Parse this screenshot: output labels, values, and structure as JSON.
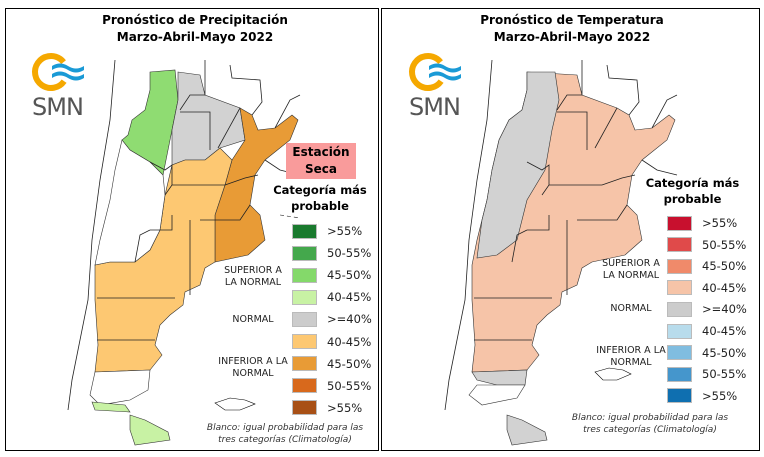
{
  "precipitation": {
    "title_line1": "Pronóstico de Precipitación",
    "title_line2": "Marzo-Abril-Mayo 2022",
    "logo_text": "SMN",
    "season_badge": "Estación Seca",
    "legend_title": "Categoría más probable",
    "groups": {
      "above": "SUPERIOR A LA NORMAL",
      "normal": "NORMAL",
      "below": "INFERIOR A LA NORMAL"
    },
    "legend": [
      {
        "label": ">55%",
        "color": "#1a7a2e"
      },
      {
        "label": "50-55%",
        "color": "#44a84c"
      },
      {
        "label": "45-50%",
        "color": "#84d96a"
      },
      {
        "label": "40-45%",
        "color": "#c8f2a4"
      },
      {
        "label": ">=40%",
        "color": "#cccccc"
      },
      {
        "label": "40-45%",
        "color": "#fdc872"
      },
      {
        "label": "45-50%",
        "color": "#e89b36"
      },
      {
        "label": "50-55%",
        "color": "#d8691c"
      },
      {
        "label": ">55%",
        "color": "#a85016"
      }
    ],
    "note": "Blanco: igual probabilidad para las tres categorías (Climatología)"
  },
  "temperature": {
    "title_line1": "Pronóstico de Temperatura",
    "title_line2": "Marzo-Abril-Mayo 2022",
    "logo_text": "SMN",
    "legend_title": "Categoría más probable",
    "groups": {
      "above": "SUPERIOR A LA NORMAL",
      "normal": "NORMAL",
      "below": "INFERIOR A LA NORMAL"
    },
    "legend": [
      {
        "label": ">55%",
        "color": "#c8102e"
      },
      {
        "label": "50-55%",
        "color": "#e04a4a"
      },
      {
        "label": "45-50%",
        "color": "#f08a6a"
      },
      {
        "label": "40-45%",
        "color": "#f6c4a8"
      },
      {
        "label": ">=40%",
        "color": "#cccccc"
      },
      {
        "label": "40-45%",
        "color": "#b8dcec"
      },
      {
        "label": "45-50%",
        "color": "#80bde0"
      },
      {
        "label": "50-55%",
        "color": "#4596cc"
      },
      {
        "label": ">55%",
        "color": "#0f6fb0"
      }
    ],
    "note": "Blanco: igual probabilidad para las tres categorías (Climatología)"
  }
}
